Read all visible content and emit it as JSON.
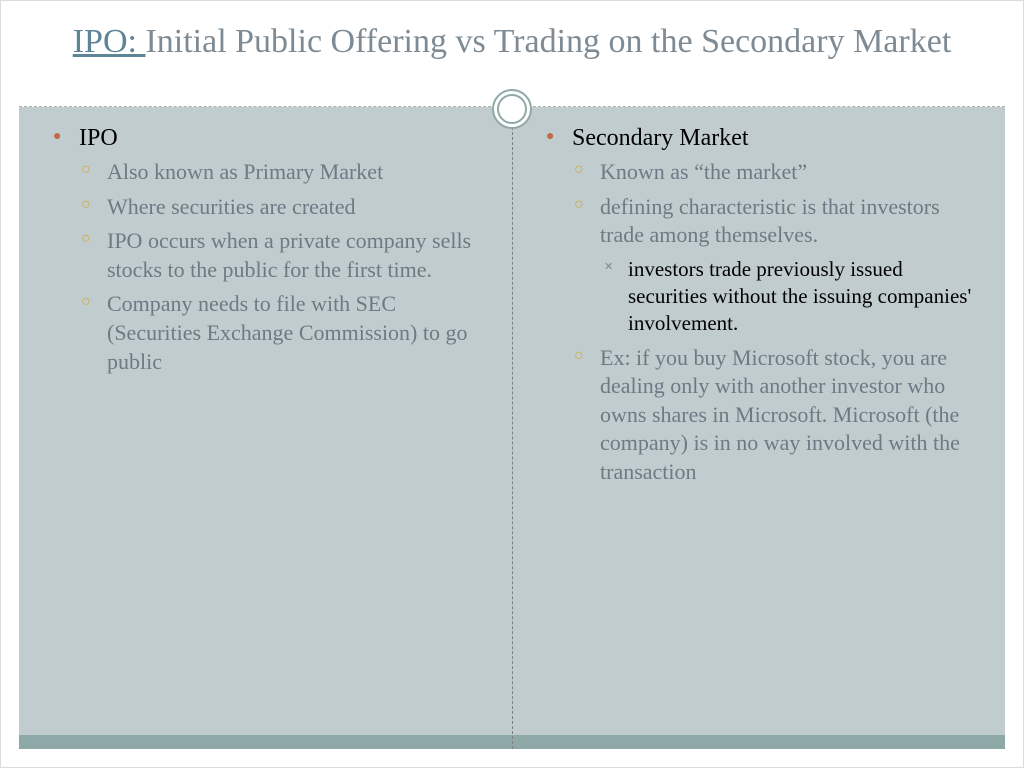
{
  "colors": {
    "title_text": "#7e8b94",
    "title_link": "#5d8596",
    "lvl1_bullet": "#c0694a",
    "lvl1_text": "#000000",
    "lvl2_bullet": "#d1a93c",
    "lvl2_text": "#6d7a84",
    "lvl3_bullet": "#7a8a8a",
    "lvl3_text": "#000000",
    "content_bg": "#c0ccce",
    "bottom_bar": "#8fa8a8",
    "circle_border": "#8fa8a8",
    "dash": "#b0b0b0"
  },
  "fontsize": {
    "title": 34,
    "lvl1": 24,
    "lvl2": 22,
    "lvl3": 21
  },
  "title": {
    "link": "IPO: ",
    "rest": "Initial Public Offering vs Trading on the Secondary Market"
  },
  "left": {
    "heading": "IPO",
    "items": [
      "Also known as Primary Market",
      "Where securities are created",
      "IPO occurs when a private company sells stocks to the public for the first time.",
      "Company needs to file with SEC (Securities Exchange Commission) to go public"
    ]
  },
  "right": {
    "heading": "Secondary Market",
    "items": {
      "i0": "Known as “the market”",
      "i1": "defining characteristic is that investors trade among themselves.",
      "i1_sub": "investors trade previously issued securities without the issuing companies' involvement.",
      "i2": "Ex:  if you buy Microsoft stock, you are dealing only with another investor who owns shares in Microsoft.  Microsoft (the company) is in no way involved with the transaction"
    }
  }
}
